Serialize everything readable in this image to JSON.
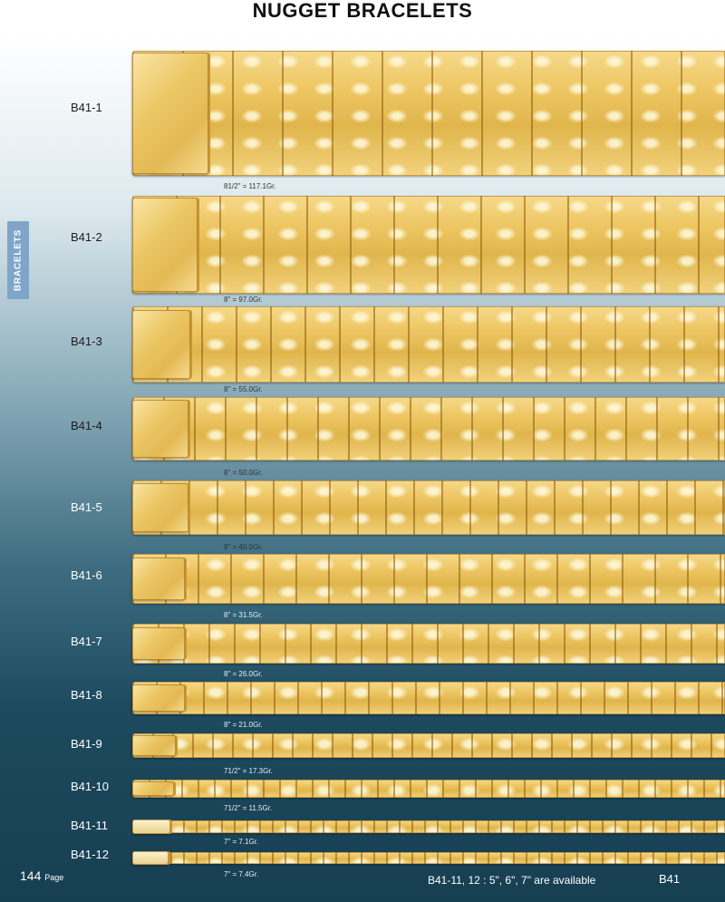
{
  "title": "NUGGET BRACELETS",
  "side_tab": "BRACELETS",
  "items": [
    {
      "code": "B41-1",
      "weight": "81/2\" = 117.1Gr."
    },
    {
      "code": "B41-2",
      "weight": "8\" = 97.0Gr."
    },
    {
      "code": "B41-3",
      "weight": "8\" = 55.0Gr."
    },
    {
      "code": "B41-4",
      "weight": "8\" = 50.0Gr."
    },
    {
      "code": "B41-5",
      "weight": "8\" = 40.0Gr."
    },
    {
      "code": "B41-6",
      "weight": "8\" = 31.5Gr."
    },
    {
      "code": "B41-7",
      "weight": "8\" = 26.0Gr."
    },
    {
      "code": "B41-8",
      "weight": "8\" = 21.0Gr."
    },
    {
      "code": "B41-9",
      "weight": "71/2\" = 17.3Gr."
    },
    {
      "code": "B41-10",
      "weight": "71/2\" = 11.5Gr."
    },
    {
      "code": "B41-11",
      "weight": "7\" = 7.1Gr."
    },
    {
      "code": "B41-12",
      "weight": "7\" = 7.4Gr."
    }
  ],
  "footer": {
    "page_number": "144",
    "page_word": "Page",
    "availability": "B41-11, 12 : 5\", 6\", 7\" are available",
    "section_code": "B41"
  },
  "colors": {
    "gold": "#eec764",
    "tab_blue": "#7fa6c9",
    "background_dark": "#173f52"
  }
}
